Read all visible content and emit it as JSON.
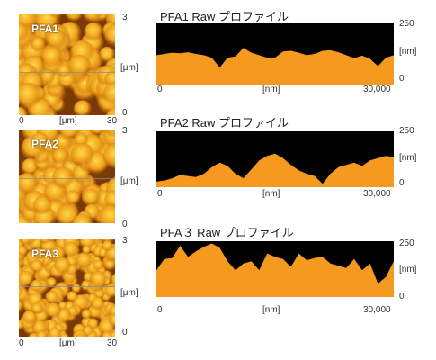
{
  "colors": {
    "profile_fill": "#f59a1e",
    "profile_bg": "#000000",
    "afm_dark": "#3d1c00",
    "afm_light": "#ffd84a"
  },
  "panels": [
    {
      "afm_label": "PFA1",
      "profile_title": "PFA1 Raw プロファイル",
      "afm_axes": {
        "x_min": "0",
        "x_unit": "[μm]",
        "x_max": "30",
        "z_max": "3",
        "z_unit": "[μm]",
        "z_min": "0"
      },
      "profile_axes": {
        "x_min": "0",
        "x_unit": "[nm]",
        "x_max": "30,000",
        "y_max": "250",
        "y_unit": "[nm]",
        "y_min": "0"
      },
      "chart_data": {
        "type": "area",
        "x": [
          0,
          1000,
          2000,
          3000,
          4000,
          5000,
          6000,
          7000,
          8000,
          9000,
          10000,
          11000,
          12000,
          13000,
          14000,
          15000,
          16000,
          17000,
          18000,
          19000,
          20000,
          21000,
          22000,
          23000,
          24000,
          25000,
          26000,
          27000,
          28000,
          29000,
          30000
        ],
        "y": [
          120,
          125,
          130,
          128,
          132,
          125,
          120,
          110,
          70,
          110,
          115,
          150,
          130,
          120,
          110,
          110,
          135,
          138,
          130,
          120,
          125,
          138,
          140,
          132,
          120,
          108,
          118,
          105,
          75,
          110,
          120
        ],
        "xlim": [
          0,
          30000
        ],
        "ylim": [
          0,
          250
        ]
      }
    },
    {
      "afm_label": "PFA2",
      "profile_title": "PFA2 Raw プロファイル",
      "afm_axes": {
        "x_min": "0",
        "x_unit": "[μm]",
        "x_max": "30",
        "z_max": "3",
        "z_unit": "[μm]",
        "z_min": "0"
      },
      "profile_axes": {
        "x_min": "0",
        "x_unit": "[nm]",
        "x_max": "30,000",
        "y_max": "250",
        "y_unit": "[nm]",
        "y_min": "0"
      },
      "chart_data": {
        "type": "area",
        "x": [
          0,
          1000,
          2000,
          3000,
          4000,
          5000,
          6000,
          7000,
          8000,
          9000,
          10000,
          11000,
          12000,
          13000,
          14000,
          15000,
          16000,
          17000,
          18000,
          19000,
          20000,
          21000,
          22000,
          23000,
          24000,
          25000,
          26000,
          27000,
          28000,
          29000,
          30000
        ],
        "y": [
          25,
          30,
          40,
          55,
          50,
          45,
          60,
          90,
          110,
          95,
          60,
          40,
          80,
          120,
          140,
          150,
          130,
          100,
          75,
          60,
          50,
          15,
          60,
          90,
          100,
          110,
          95,
          120,
          130,
          140,
          135
        ],
        "xlim": [
          0,
          30000
        ],
        "ylim": [
          0,
          250
        ]
      }
    },
    {
      "afm_label": "PFA3",
      "profile_title": "PFA３ Raw プロファイル",
      "afm_axes": {
        "x_min": "0",
        "x_unit": "[μm]",
        "x_max": "30",
        "z_max": "3",
        "z_unit": "[μm]",
        "z_min": "0"
      },
      "profile_axes": {
        "x_min": "0",
        "x_unit": "[nm]",
        "x_max": "30,000",
        "y_max": "250",
        "y_unit": "[nm]",
        "y_min": "0"
      },
      "chart_data": {
        "type": "area",
        "x": [
          0,
          1000,
          2000,
          3000,
          4000,
          5000,
          6000,
          7000,
          8000,
          9000,
          10000,
          11000,
          12000,
          13000,
          14000,
          15000,
          16000,
          17000,
          18000,
          19000,
          20000,
          21000,
          22000,
          23000,
          24000,
          25000,
          26000,
          27000,
          28000,
          29000,
          30000
        ],
        "y": [
          120,
          170,
          175,
          230,
          180,
          205,
          225,
          240,
          220,
          160,
          120,
          150,
          160,
          120,
          195,
          180,
          170,
          135,
          195,
          165,
          175,
          180,
          150,
          140,
          130,
          170,
          120,
          150,
          60,
          90,
          160
        ],
        "xlim": [
          0,
          30000
        ],
        "ylim": [
          0,
          250
        ]
      }
    }
  ]
}
